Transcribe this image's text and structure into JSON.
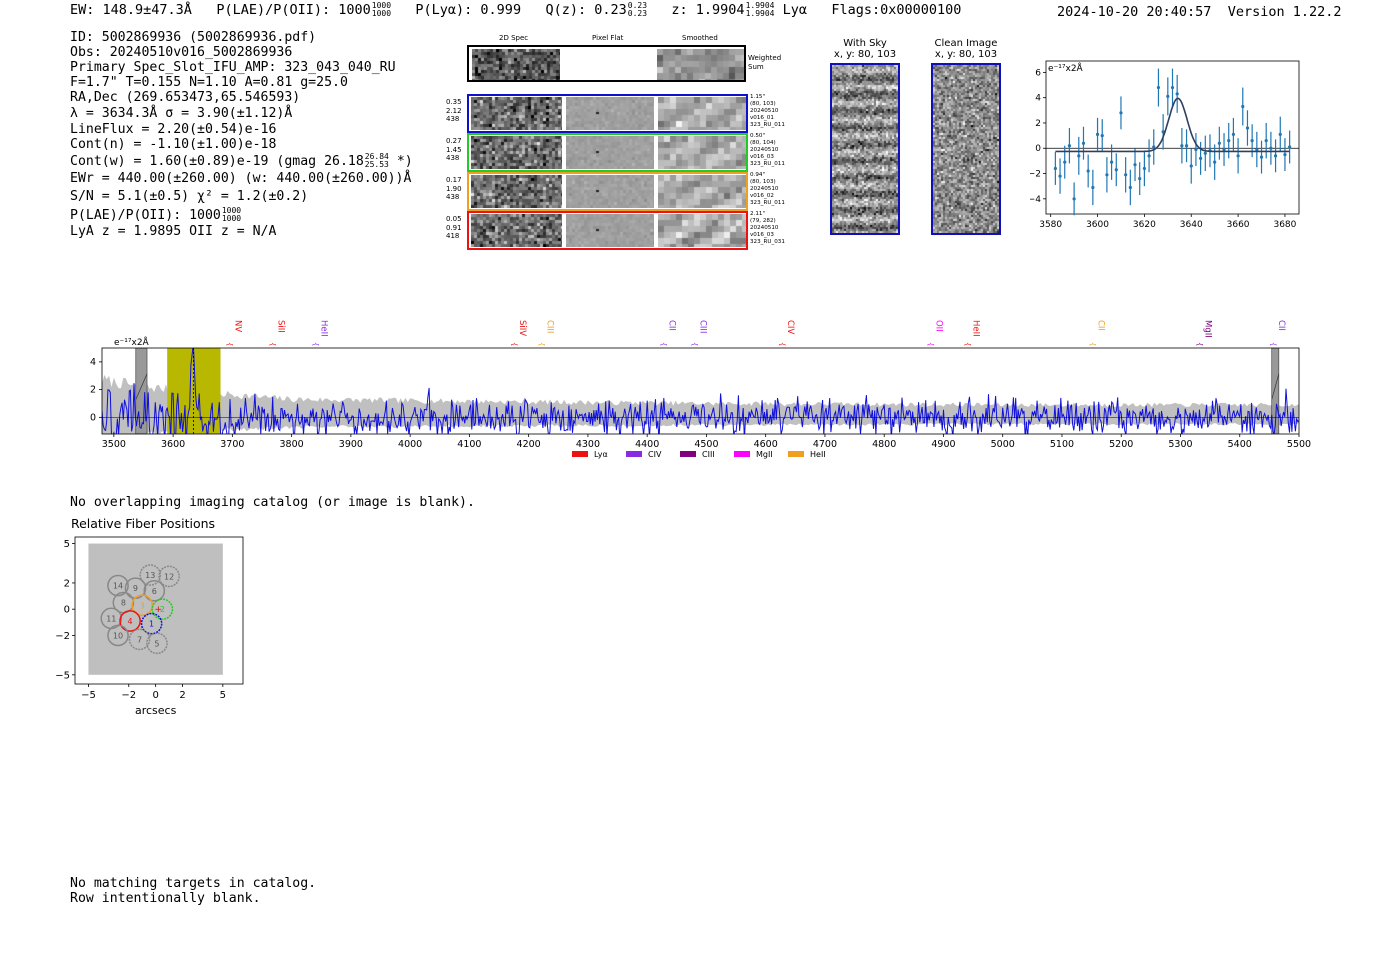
{
  "header": {
    "ew": "EW: 148.9±47.3Å",
    "plae_label": "P(LAE)/P(OII): 1000",
    "plae_hi": "1000",
    "plae_lo": "1000",
    "plya": "P(Lyα): 0.999",
    "qz": "Q(z): 0.23",
    "qz_hi": "0.23",
    "qz_lo": "0.23",
    "z": "z: 1.9904",
    "z_hi": "1.9904",
    "z_lo": "1.9904",
    "z_line": "Lyα",
    "flags": "Flags:0x00000100",
    "timestamp": "2024-10-20 20:40:57",
    "version": "Version 1.22.2"
  },
  "info": {
    "id": "ID: 5002869936 (5002869936.pdf)",
    "obs": "Obs: 20240510v016_5002869936",
    "primary": "Primary Spec_Slot_IFU_AMP: 323_043_040_RU",
    "fiber": "F=1.7\"  T=0.155  N=1.10  A=0.81  g=25.0",
    "radec": "RA,Dec (269.653473,65.546593)",
    "lambda": "λ = 3634.3Å   σ = 3.90(±1.12)Å",
    "lineflux": "LineFlux = 2.20(±0.54)e-16",
    "contn": "Cont(n) = -1.10(±1.00)e-18",
    "contw": "Cont(w) = 1.60(±0.89)e-19 (gmag 26.18",
    "contw_hi": "26.84",
    "contw_lo": "25.53",
    "contw_tail": "*)",
    "ewr": "EWr = 440.00(±260.00) (w: 440.00(±260.00))Å",
    "sn": "S/N = 5.1(±0.5)  χ² = 1.2(±0.2)",
    "plae": "P(LAE)/P(OII): 1000",
    "plae_hi": "1000",
    "plae_lo": "1000",
    "lyaz": "LyA z = 1.9895  OII z = N/A"
  },
  "strips": {
    "col_titles": [
      "2D Spec",
      "Pixel Flat",
      "Smoothed"
    ],
    "weighted_label": "Weighted Sum",
    "rows": [
      {
        "color": "#1010cc",
        "left": [
          "0.35",
          "2.12",
          "438"
        ],
        "right": [
          "1.15\"",
          "(80, 103)",
          "20240510",
          "v016_01",
          "323_RU_011"
        ]
      },
      {
        "color": "#22cc22",
        "left": [
          "0.27",
          "1.45",
          "438"
        ],
        "right": [
          "0.50\"",
          "(80, 104)",
          "20240510",
          "v016_03",
          "323_RU_011"
        ]
      },
      {
        "color": "#f0a020",
        "left": [
          "0.17",
          "1.90",
          "438"
        ],
        "right": [
          "0.94\"",
          "(80, 103)",
          "20240510",
          "v016_02",
          "323_RU_011"
        ]
      },
      {
        "color": "#ee1111",
        "left": [
          "0.05",
          "0.91",
          "418"
        ],
        "right": [
          "2.11\"",
          "(79, 282)",
          "20240510",
          "v016_03",
          "323_RU_031"
        ]
      }
    ]
  },
  "cutouts": {
    "sky_title": "With Sky",
    "sky_coords": "x, y: 80, 103",
    "clean_title": "Clean Image",
    "clean_coords": "x, y: 80, 103"
  },
  "colors": {
    "spectrum_blue": "#1010dd",
    "noise_gray": "#c0c0c0",
    "fit_blue": "#1f77b4",
    "highlight_yellow": "#b8b800"
  },
  "chart_data": [
    {
      "id": "zoom-fit",
      "type": "scatter",
      "title": "",
      "unit_label": "e⁻¹⁷x2Å",
      "xlabel": "",
      "ylabel": "",
      "xlim": [
        3578,
        3686
      ],
      "ylim": [
        -5.2,
        6.9
      ],
      "xticks": [
        3580,
        3600,
        3620,
        3640,
        3660,
        3680
      ],
      "yticks": [
        -4,
        -2,
        0,
        2,
        4,
        6
      ],
      "x": [
        3582,
        3584,
        3586,
        3588,
        3590,
        3592,
        3594,
        3596,
        3598,
        3600,
        3602,
        3604,
        3606,
        3608,
        3610,
        3612,
        3614,
        3616,
        3618,
        3620,
        3622,
        3624,
        3626,
        3628,
        3630,
        3632,
        3634,
        3636,
        3638,
        3640,
        3642,
        3644,
        3646,
        3648,
        3650,
        3652,
        3654,
        3656,
        3658,
        3660,
        3662,
        3664,
        3666,
        3668,
        3670,
        3672,
        3674,
        3676,
        3678,
        3680,
        3682
      ],
      "y": [
        -1.6,
        -2.2,
        -1.1,
        0.2,
        -4.0,
        -0.6,
        0.4,
        -1.8,
        -3.1,
        1.1,
        1.0,
        -2.1,
        -1.1,
        -1.7,
        2.8,
        -2.1,
        -3.1,
        -1.3,
        -2.4,
        -1.6,
        -0.6,
        0.1,
        4.8,
        1.3,
        4.1,
        4.8,
        4.3,
        0.2,
        0.2,
        -1.4,
        -0.1,
        -0.8,
        -0.4,
        -0.2,
        -1.1,
        0.4,
        -0.1,
        0.6,
        1.1,
        -0.6,
        3.3,
        1.6,
        0.6,
        -0.1,
        -0.7,
        0.6,
        0.0,
        -0.6,
        1.1,
        -0.5,
        0.1
      ],
      "yerr": [
        1.3,
        1.4,
        1.3,
        1.4,
        1.3,
        1.5,
        1.3,
        1.3,
        1.4,
        1.3,
        1.3,
        1.4,
        1.4,
        1.3,
        1.3,
        1.4,
        1.4,
        1.3,
        1.3,
        1.4,
        1.3,
        1.4,
        1.5,
        1.4,
        1.5,
        1.5,
        1.5,
        1.4,
        1.3,
        1.4,
        1.3,
        1.3,
        1.4,
        1.3,
        1.4,
        1.3,
        1.3,
        1.4,
        1.3,
        1.4,
        1.5,
        1.4,
        1.3,
        1.4,
        1.3,
        1.4,
        1.3,
        1.3,
        1.4,
        1.3,
        1.3
      ],
      "fit": {
        "type": "gaussian",
        "center": 3634.3,
        "sigma": 3.9,
        "amplitude": 4.2,
        "baseline": -0.25
      }
    },
    {
      "id": "full-spectrum",
      "type": "line",
      "title": "",
      "unit_label": "e⁻¹⁷x2Å",
      "xlim": [
        3480,
        5500
      ],
      "ylim": [
        -1.2,
        5.0
      ],
      "xticks": [
        3500,
        3600,
        3700,
        3800,
        3900,
        4000,
        4100,
        4200,
        4300,
        4400,
        4500,
        4600,
        4700,
        4800,
        4900,
        5000,
        5100,
        5200,
        5300,
        5400,
        5500
      ],
      "yticks": [
        0,
        2,
        4
      ],
      "highlight_range": [
        3590,
        3680
      ],
      "line_center": 3634.3,
      "masked_ranges": [
        [
          3537,
          3556
        ],
        [
          5454,
          5466
        ]
      ],
      "noise_envelope": {
        "x": [
          3480,
          3550,
          3650,
          3800,
          4000,
          4500,
          5000,
          5500
        ],
        "y": [
          2.7,
          2.2,
          1.8,
          1.3,
          1.2,
          1.0,
          0.9,
          0.9
        ]
      },
      "flux_rms": 0.8,
      "flux_seed": 7,
      "line_labels": [
        {
          "name": "NV",
          "wave": 3700,
          "color": "#ee1111"
        },
        {
          "name": "SiII",
          "wave": 3773,
          "color": "#ee1111"
        },
        {
          "name": "HeII",
          "wave": 3845,
          "color": "#8a2be2"
        },
        {
          "name": "SiIV",
          "wave": 4180,
          "color": "#ee1111"
        },
        {
          "name": "CIII",
          "wave": 4227,
          "color": "#f0a020"
        },
        {
          "name": "CII",
          "wave": 4433,
          "color": "#8a2be2"
        },
        {
          "name": "CIII",
          "wave": 4485,
          "color": "#8a2be2"
        },
        {
          "name": "CIV",
          "wave": 4633,
          "color": "#ee1111"
        },
        {
          "name": "OII",
          "wave": 4883,
          "color": "#ff00ff"
        },
        {
          "name": "HeII",
          "wave": 4946,
          "color": "#ee1111"
        },
        {
          "name": "CII",
          "wave": 5157,
          "color": "#f0a020"
        },
        {
          "name": "MgII",
          "wave": 5337,
          "color": "#800080"
        },
        {
          "name": "CII",
          "wave": 5461,
          "color": "#8a2be2"
        }
      ],
      "legend": [
        {
          "label": "Lyα",
          "color": "#ee1111"
        },
        {
          "label": "CIV",
          "color": "#8a2be2"
        },
        {
          "label": "CIII",
          "color": "#800080"
        },
        {
          "label": "MgII",
          "color": "#ff00ff"
        },
        {
          "label": "HeII",
          "color": "#f0a020"
        }
      ]
    },
    {
      "id": "fiber-positions",
      "type": "scatter",
      "title": "Relative Fiber Positions",
      "xlabel": "arcsecs",
      "xlim": [
        -6,
        6.5
      ],
      "ylim": [
        -5.7,
        5.5
      ],
      "xticks": [
        -5,
        -2,
        0,
        2,
        5
      ],
      "yticks": [
        -5,
        -2,
        0,
        2,
        5
      ],
      "xtick_labels": [
        "−5",
        "−2",
        "0",
        "2",
        "5"
      ],
      "ytick_labels": [
        "−5",
        "−2",
        "0",
        "2",
        "5"
      ],
      "fibers": [
        {
          "label": "14",
          "x": -2.8,
          "y": 1.8,
          "color": "#888888",
          "style": "solid"
        },
        {
          "label": "13",
          "x": -0.4,
          "y": 2.6,
          "color": "#888888",
          "style": "dashed"
        },
        {
          "label": "12",
          "x": 1.0,
          "y": 2.5,
          "color": "#888888",
          "style": "dashed"
        },
        {
          "label": "9",
          "x": -1.5,
          "y": 1.6,
          "color": "#888888",
          "style": "solid"
        },
        {
          "label": "6",
          "x": -0.1,
          "y": 1.4,
          "color": "#888888",
          "style": "solid"
        },
        {
          "label": "8",
          "x": -2.4,
          "y": 0.5,
          "color": "#888888",
          "style": "solid"
        },
        {
          "label": "3",
          "x": -1.0,
          "y": 0.3,
          "color": "#f0a020",
          "style": "solid"
        },
        {
          "label": "2",
          "x": 0.5,
          "y": 0.0,
          "color": "#22cc22",
          "style": "dashed"
        },
        {
          "label": "11",
          "x": -3.3,
          "y": -0.7,
          "color": "#888888",
          "style": "solid"
        },
        {
          "label": "4",
          "x": -1.9,
          "y": -0.9,
          "color": "#ee1111",
          "style": "solid"
        },
        {
          "label": "1",
          "x": -0.3,
          "y": -1.1,
          "color": "#1010cc",
          "style": "dashed"
        },
        {
          "label": "10",
          "x": -2.8,
          "y": -2.0,
          "color": "#888888",
          "style": "solid"
        },
        {
          "label": "7",
          "x": -1.2,
          "y": -2.3,
          "color": "#888888",
          "style": "dashed"
        },
        {
          "label": "5",
          "x": 0.1,
          "y": -2.6,
          "color": "#888888",
          "style": "dashed"
        }
      ],
      "fiber_radius": 0.75,
      "marker": {
        "x": 0.2,
        "y": 0.0
      }
    }
  ],
  "footer": {
    "imaging_note": "No overlapping imaging catalog (or image is blank).",
    "catalog_note": "No matching targets in catalog.",
    "row_note": "Row intentionally blank."
  }
}
